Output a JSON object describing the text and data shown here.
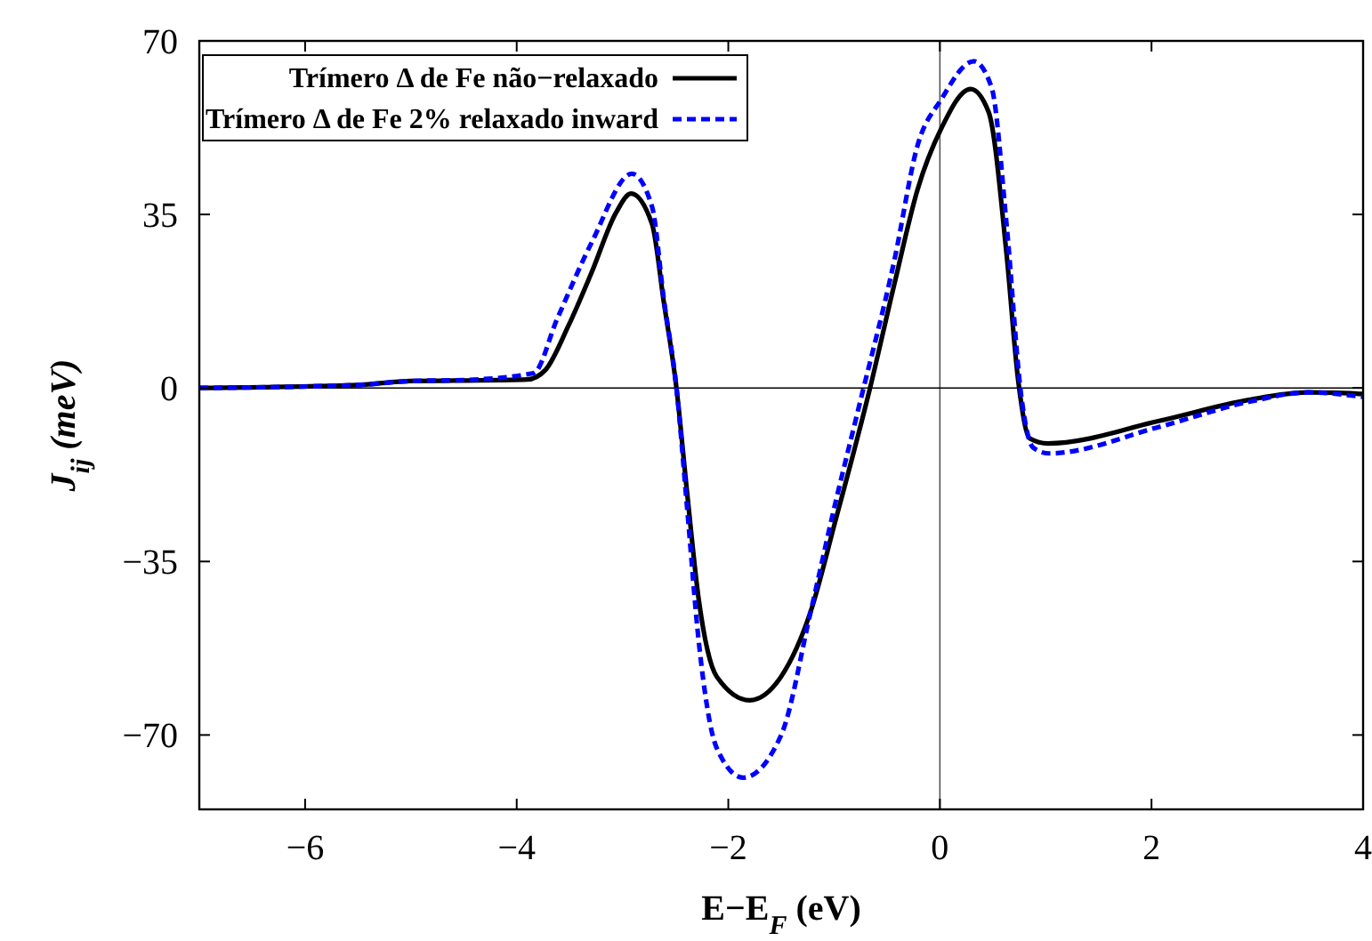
{
  "chart_data": {
    "type": "line",
    "xlabel": "E−E$_{F}$ (eV)",
    "ylabel": "J$_{ij}$ (meV)",
    "xlim": [
      -7,
      4
    ],
    "ylim": [
      -85,
      70
    ],
    "xticks": [
      -6,
      -4,
      -2,
      0,
      2,
      4
    ],
    "yticks": [
      -70,
      -35,
      0,
      35,
      70
    ],
    "grid": false,
    "legend": "top left",
    "marker": "none",
    "ref_lines": [
      {
        "axis": "x",
        "value": 0,
        "color": "#555555"
      },
      {
        "axis": "y",
        "value": 0,
        "color": "#000000"
      }
    ],
    "series": [
      {
        "name": "Trímero Δ de Fe não−relaxado",
        "color": "#000000",
        "line_style": "solid",
        "x": [
          -7,
          -5.5,
          -5,
          -4.5,
          -3.9,
          -3.73,
          -3.51,
          -3.29,
          -3.06,
          -2.92,
          -2.72,
          -2.61,
          -2.49,
          -2.39,
          -2.28,
          -2.11,
          -1.8,
          -1.5,
          -1.22,
          -0.99,
          -0.66,
          -0.43,
          -0.21,
          0.01,
          0.29,
          0.46,
          0.63,
          0.74,
          0.85,
          1.02,
          2.08,
          2.92,
          3.48,
          4
        ],
        "values": [
          0,
          0.6,
          1.4,
          1.5,
          1.7,
          3.6,
          12.6,
          23.4,
          35.4,
          39.2,
          33,
          17.4,
          0,
          -21,
          -42.6,
          -58.2,
          -63,
          -58.2,
          -45,
          -27,
          0,
          21,
          40.1,
          52.2,
          60.3,
          55.7,
          27,
          1.5,
          -10.2,
          -11.2,
          -6.6,
          -2.4,
          -0.9,
          -1.2
        ]
      },
      {
        "name": "Trímero Δ de Fe 2% relaxado inward",
        "color": "#0000ff",
        "line_style": "dashed",
        "x": [
          -7,
          -5.5,
          -5,
          -4.5,
          -3.84,
          -3.62,
          -3.29,
          -2.91,
          -2.72,
          -2.61,
          -2.49,
          -2.39,
          -2.28,
          -2.11,
          -1.86,
          -1.5,
          -1.22,
          -0.99,
          -0.77,
          -0.43,
          -0.21,
          0.01,
          0.32,
          0.49,
          0.63,
          0.77,
          0.88,
          1.03,
          2.08,
          2.92,
          3.48,
          4
        ],
        "values": [
          0,
          0.6,
          1.4,
          1.6,
          3,
          13.8,
          29.4,
          43.2,
          36.5,
          18,
          0,
          -24,
          -51,
          -72.6,
          -78.6,
          -70,
          -45,
          -23.4,
          -4.2,
          25.8,
          49,
          58.1,
          65.9,
          60.5,
          33,
          -1.8,
          -12,
          -13.2,
          -7.8,
          -2.8,
          -0.9,
          -1.8
        ]
      }
    ]
  }
}
